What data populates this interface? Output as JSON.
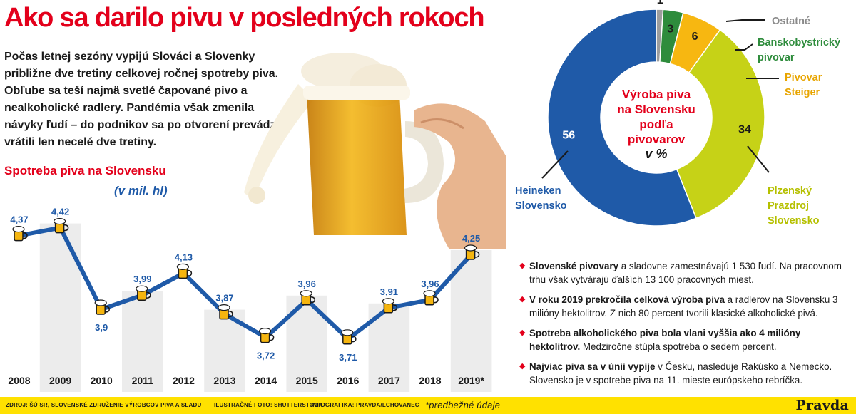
{
  "title": "Ako sa darilo pivu v posledných rokoch",
  "intro": "Počas letnej sezóny vypijú Slováci a Slovenky približne dve tretiny celkovej ročnej spotreby piva. Obľube sa teší najmä svetlé čapované pivo a nealkoholické radlery. Pandémia však zmenila návyky ľudí – do podnikov sa po otvorení prevádzok vrátili len necelé dve tretiny.",
  "consumption": {
    "title": "Spotreba piva na Slovensku",
    "unit": "(v mil. hl)"
  },
  "chart_data": [
    {
      "type": "line",
      "title": "Spotreba piva na Slovensku",
      "ylabel": "(v mil. hl)",
      "categories": [
        "2008",
        "2009",
        "2010",
        "2011",
        "2012",
        "2013",
        "2014",
        "2015",
        "2016",
        "2017",
        "2018",
        "2019*"
      ],
      "values": [
        4.37,
        4.42,
        3.9,
        3.99,
        4.13,
        3.87,
        3.72,
        3.96,
        3.71,
        3.91,
        3.96,
        4.25
      ],
      "value_labels": [
        "4,37",
        "4,42",
        "3,9",
        "3,99",
        "4,13",
        "3,87",
        "3,72",
        "3,96",
        "3,71",
        "3,91",
        "3,96",
        "4,25"
      ],
      "ylim": [
        3.6,
        4.5
      ],
      "color": "#1f5aa8"
    },
    {
      "type": "pie",
      "title": "Výroba piva na Slovensku podľa pivovarov v %",
      "categories": [
        "Heineken Slovensko",
        "Plzenský Prazdroj Slovensko",
        "Pivovar Steiger",
        "Banskobystrický pivovar",
        "Ostatné"
      ],
      "values": [
        56,
        34,
        6,
        3,
        1
      ],
      "colors": [
        "#1f5aa8",
        "#c6d217",
        "#f7b711",
        "#2e8c3c",
        "#9d9d9d"
      ]
    }
  ],
  "donut": {
    "center_line1": "Výroba piva",
    "center_line2": "na Slovensku",
    "center_line3": "podľa",
    "center_line4": "pivovarov",
    "center_line5": "v %",
    "labels": {
      "heineken": [
        "Heineken",
        "Slovensko"
      ],
      "plzensky": [
        "Plzenský",
        "Prazdroj",
        "Slovensko"
      ],
      "steiger": [
        "Pivovar",
        "Steiger"
      ],
      "banska": [
        "Banskobystrický",
        "pivovar"
      ],
      "ostatne": [
        "Ostatné"
      ]
    },
    "label_colors": {
      "heineken": "#1f5aa8",
      "plzensky": "#b5c000",
      "steiger": "#e8a500",
      "banska": "#2e8c3c",
      "ostatne": "#8a8a8a"
    }
  },
  "notes": [
    {
      "bold": "Slovenské pivovary",
      "rest": " a sladovne zamestnávajú 1 530 ľudí. Na pracovnom trhu však vytvárajú ďalších 13 100 pracovných miest."
    },
    {
      "bold": "V roku 2019 prekročila celková výroba piva",
      "rest": " a radlerov na Slovensku 3 milióny hektolitrov. Z nich 80 percent tvorili klasické alkoholické pivá."
    },
    {
      "bold": "Spotreba alkoholického piva bola vlani vyššia ako 4 milióny hektolitrov.",
      "rest": " Medziročne stúpla spotreba o sedem percent."
    },
    {
      "bold": "Najviac piva sa v únii vypije",
      "rest": " v Česku, nasleduje Rakúsko a Nemecko. Slovensko je v spotrebe piva na 11. mieste európskeho rebríčka."
    }
  ],
  "footer": {
    "source": "ZDROJ: ŠÚ SR, SLOVENSKÉ ZDRUŽENIE VÝROBCOV PIVA A SLADU",
    "photo": "ILUSTRAČNÉ FOTO: SHUTTERSTOCK",
    "infographic": "INFOGRAFIKA: PRAVDA/LCHOVANEC",
    "note": "*predbežné údaje",
    "brand": "Pravda"
  },
  "colors": {
    "accent_red": "#e3001b",
    "line_blue": "#1f5aa8",
    "band_gray": "#ececec",
    "footer_yellow": "#ffe100"
  }
}
